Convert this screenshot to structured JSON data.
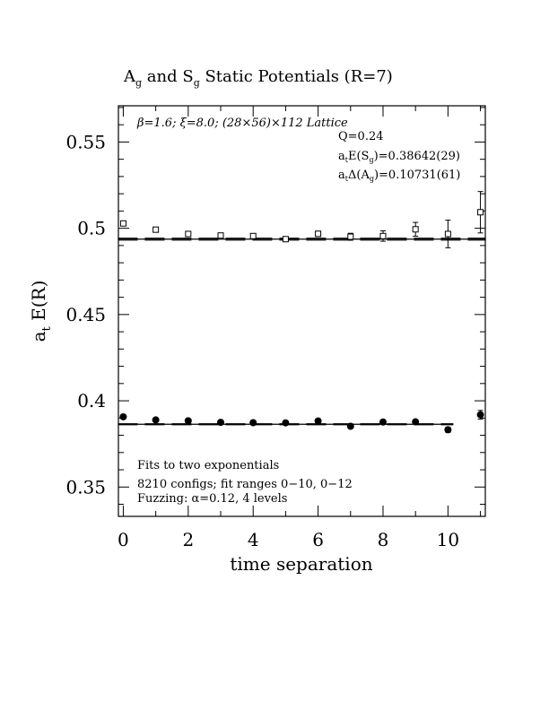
{
  "chart_data": {
    "type": "scatter",
    "title": "A_g and S_g Static Potentials (R=7)",
    "title_parts": {
      "a": "A",
      "a_sub": "g",
      "mid": " and ",
      "s": "S",
      "s_sub": "g",
      "rest": " Static Potentials (R=7)"
    },
    "xlabel": "time separation",
    "ylabel": "a_t E(R)",
    "ylabel_parts": {
      "main": "a",
      "sub": "t",
      "rest": " E(R)"
    },
    "xlim": [
      -0.15,
      11.15
    ],
    "ylim": [
      0.333,
      0.571
    ],
    "xticks": [
      0,
      2,
      4,
      6,
      8,
      10
    ],
    "xtick_labels": [
      "0",
      "2",
      "4",
      "6",
      "8",
      "10"
    ],
    "yticks": [
      0.35,
      0.4,
      0.45,
      0.5,
      0.55
    ],
    "ytick_labels": [
      "0.35",
      "0.4",
      "0.45",
      "0.5",
      "0.55"
    ],
    "series": [
      {
        "marker": "open-square",
        "x": [
          0,
          1,
          2,
          3,
          4,
          5,
          6,
          7,
          8,
          9,
          10,
          11
        ],
        "y": [
          0.5028,
          0.4992,
          0.4967,
          0.4958,
          0.4955,
          0.4937,
          0.4968,
          0.4951,
          0.4955,
          0.4994,
          0.4967,
          0.5093
        ],
        "err": [
          0.0008,
          0.0008,
          0.0008,
          0.0008,
          0.001,
          0.0012,
          0.0015,
          0.002,
          0.003,
          0.004,
          0.008,
          0.012
        ],
        "fit": {
          "y": 0.4937,
          "band": 0.0006,
          "x_range": [
            0,
            11
          ]
        }
      },
      {
        "marker": "filled-circle",
        "x": [
          0,
          1,
          2,
          3,
          4,
          5,
          6,
          7,
          8,
          9,
          10,
          11
        ],
        "y": [
          0.3907,
          0.3889,
          0.3884,
          0.3875,
          0.3873,
          0.3872,
          0.3883,
          0.3852,
          0.3877,
          0.3878,
          0.3832,
          0.3919
        ],
        "err": [
          0.0004,
          0.0004,
          0.0004,
          0.0004,
          0.0005,
          0.0005,
          0.0006,
          0.0008,
          0.001,
          0.0012,
          0.0015,
          0.0025
        ],
        "fit": {
          "y": 0.3864,
          "band": 0.0003,
          "x_range": [
            0,
            10
          ]
        }
      }
    ],
    "annotations": {
      "lattice": "β=1.6; ξ=8.0; (28×56)×112 Lattice",
      "q": "Q=0.24",
      "energy": {
        "a": "a",
        "a_sub": "t",
        "mid": "E(S",
        "mid_sub": "g",
        "rest": ")=0.38642(29)"
      },
      "gap": {
        "a": "a",
        "a_sub": "t",
        "mid": "Δ(A",
        "mid_sub": "g",
        "rest": ")=0.10731(61)"
      },
      "fits": "Fits to two exponentials",
      "configs": "8210 configs; fit ranges 0−10, 0−12",
      "fuzzing": "Fuzzing: α=0.12, 4 levels"
    },
    "grid": false,
    "legend": "none"
  }
}
